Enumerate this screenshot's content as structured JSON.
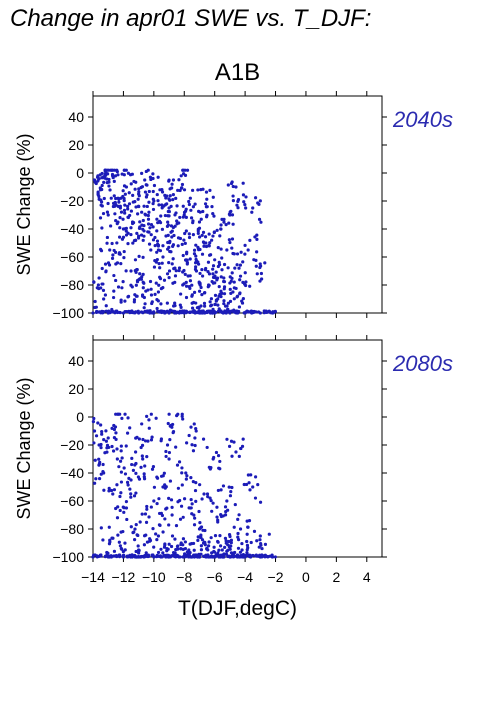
{
  "page_title": "Change in apr01 SWE vs. T_DJF:",
  "colors": {
    "points": "#1c1cb8",
    "period_label": "#2b2bb0",
    "axis": "#000000"
  },
  "chart_data": {
    "type": "scatter",
    "scenario": "A1B",
    "xlabel": "T(DJF,degC)",
    "ylabel": "SWE Change (%)",
    "xlim": [
      -14,
      5
    ],
    "ylim": [
      -100,
      55
    ],
    "xticks": [
      -14,
      -12,
      -10,
      -8,
      -6,
      -4,
      -2,
      0,
      2,
      4
    ],
    "yticks": [
      -100,
      -80,
      -60,
      -40,
      -20,
      0,
      20,
      40
    ],
    "x_range_of_points": [
      -14,
      -2
    ],
    "panels": [
      {
        "period": "2040s",
        "description_hint": "dense cloud between -14 and -4 degC, SWE change mostly -10 to -90%, many points at -100%",
        "points": [
          [
            -13.9,
            -5
          ],
          [
            -13.7,
            -3
          ],
          [
            -13.5,
            -12
          ],
          [
            -13.2,
            -1
          ],
          [
            -13.0,
            -30
          ],
          [
            -12.8,
            -18
          ],
          [
            -12.6,
            -6
          ],
          [
            -12.4,
            1
          ],
          [
            -12.2,
            -25
          ],
          [
            -12.0,
            -40
          ],
          [
            -11.8,
            -10
          ],
          [
            -11.6,
            -22
          ],
          [
            -11.4,
            -35
          ],
          [
            -11.2,
            -48
          ],
          [
            -11.0,
            -15
          ],
          [
            -10.8,
            -28
          ],
          [
            -10.6,
            -5
          ],
          [
            -10.4,
            -42
          ],
          [
            -10.2,
            -55
          ],
          [
            -10.0,
            -20
          ],
          [
            -9.8,
            -33
          ],
          [
            -9.6,
            -12
          ],
          [
            -9.4,
            -60
          ],
          [
            -9.2,
            -45
          ],
          [
            -9.0,
            -25
          ],
          [
            -8.8,
            -8
          ],
          [
            -8.6,
            -38
          ],
          [
            -8.4,
            -52
          ],
          [
            -8.2,
            -2
          ],
          [
            -8.0,
            -30
          ],
          [
            -7.8,
            -65
          ],
          [
            -7.6,
            -18
          ],
          [
            -7.4,
            -44
          ],
          [
            -7.2,
            -70
          ],
          [
            -7.0,
            -35
          ],
          [
            -6.8,
            -58
          ],
          [
            -6.6,
            -22
          ],
          [
            -6.4,
            -80
          ],
          [
            -6.2,
            -48
          ],
          [
            -6.0,
            -62
          ],
          [
            -5.8,
            -90
          ],
          [
            -5.6,
            -40
          ],
          [
            -5.4,
            -75
          ],
          [
            -5.2,
            -55
          ],
          [
            -5.0,
            -30
          ],
          [
            -4.8,
            -85
          ],
          [
            -4.6,
            -10
          ],
          [
            -4.4,
            -68
          ],
          [
            -3.5,
            -25
          ],
          [
            -3.2,
            -72
          ],
          [
            -13.6,
            -75
          ],
          [
            -13.3,
            -90
          ],
          [
            -12.9,
            -55
          ],
          [
            -12.5,
            -65
          ],
          [
            -12.1,
            -82
          ],
          [
            -11.5,
            -70
          ],
          [
            -11.1,
            -88
          ],
          [
            -10.7,
            -78
          ],
          [
            -10.1,
            -92
          ],
          [
            -9.7,
            -85
          ],
          [
            -9.1,
            -72
          ],
          [
            -8.7,
            -95
          ],
          [
            -8.1,
            -80
          ],
          [
            -7.5,
            -88
          ],
          [
            -6.9,
            -95
          ],
          [
            -6.3,
            -92
          ],
          [
            -5.7,
            -97
          ],
          [
            -5.1,
            -93
          ],
          [
            -4.5,
            -88
          ],
          [
            -3.8,
            -55
          ],
          [
            -14,
            -100
          ],
          [
            -13,
            -100
          ],
          [
            -12,
            -100
          ],
          [
            -11,
            -100
          ],
          [
            -10,
            -100
          ],
          [
            -9,
            -100
          ],
          [
            -8,
            -100
          ],
          [
            -7,
            -100
          ],
          [
            -6,
            -100
          ],
          [
            -5,
            -100
          ],
          [
            -4,
            -100
          ],
          [
            -3,
            -100
          ],
          [
            -2.2,
            -100
          ]
        ]
      },
      {
        "period": "2080s",
        "description_hint": "cloud shifted lower, SWE change mostly -30 to -100%, dense band at -100%",
        "points": [
          [
            -13.9,
            -10
          ],
          [
            -13.6,
            -20
          ],
          [
            -13.3,
            -40
          ],
          [
            -13.0,
            -15
          ],
          [
            -12.7,
            -55
          ],
          [
            -12.4,
            -30
          ],
          [
            -12.1,
            -1
          ],
          [
            -11.8,
            -65
          ],
          [
            -11.5,
            -45
          ],
          [
            -11.2,
            -25
          ],
          [
            -10.9,
            -75
          ],
          [
            -10.6,
            -35
          ],
          [
            -10.3,
            -8
          ],
          [
            -10.0,
            -60
          ],
          [
            -9.7,
            -85
          ],
          [
            -9.4,
            -50
          ],
          [
            -9.1,
            -20
          ],
          [
            -8.8,
            -70
          ],
          [
            -8.5,
            1
          ],
          [
            -8.2,
            -90
          ],
          [
            -7.9,
            -40
          ],
          [
            -7.6,
            -65
          ],
          [
            -7.3,
            -15
          ],
          [
            -7.0,
            -80
          ],
          [
            -6.7,
            -55
          ],
          [
            -6.4,
            -92
          ],
          [
            -6.1,
            -30
          ],
          [
            -5.8,
            -75
          ],
          [
            -5.5,
            -95
          ],
          [
            -5.2,
            -60
          ],
          [
            -4.9,
            -88
          ],
          [
            -4.6,
            -25
          ],
          [
            -4.3,
            -80
          ],
          [
            -3.5,
            -50
          ],
          [
            -3.0,
            -85
          ],
          [
            -12.9,
            -88
          ],
          [
            -12.2,
            -92
          ],
          [
            -11.0,
            -95
          ],
          [
            -10.5,
            -97
          ],
          [
            -9.3,
            -93
          ],
          [
            -8.6,
            -97
          ],
          [
            -7.7,
            -95
          ],
          [
            -6.9,
            -98
          ],
          [
            -6.2,
            -97
          ],
          [
            -5.6,
            -99
          ],
          [
            -4.9,
            -97
          ],
          [
            -4.2,
            -95
          ],
          [
            -14,
            -100
          ],
          [
            -13,
            -100
          ],
          [
            -12,
            -100
          ],
          [
            -11,
            -100
          ],
          [
            -10,
            -100
          ],
          [
            -9,
            -100
          ],
          [
            -8,
            -100
          ],
          [
            -7,
            -100
          ],
          [
            -6,
            -100
          ],
          [
            -5,
            -100
          ],
          [
            -4,
            -100
          ],
          [
            -3,
            -100
          ],
          [
            -2.2,
            -100
          ]
        ]
      }
    ]
  }
}
